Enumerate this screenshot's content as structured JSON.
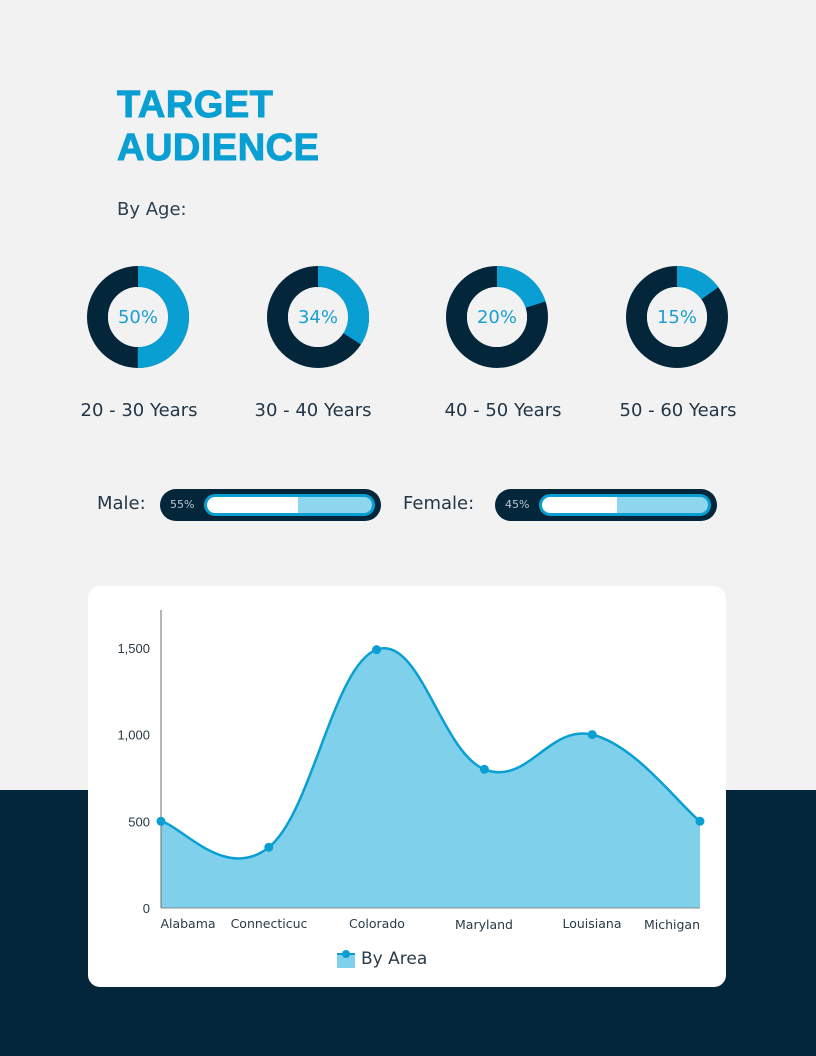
{
  "header": {
    "title_line1": "TARGET",
    "title_line2": "AUDIENCE",
    "subtitle": "By Age:"
  },
  "colors": {
    "accent": "#0a9fd3",
    "dark": "#03263b",
    "area_fill": "#7fd0ea",
    "background": "#f2f2f2",
    "light_bar": "#8fd6ef"
  },
  "age_groups": [
    {
      "label": "20 - 30 Years",
      "percent": 50,
      "percent_label": "50%"
    },
    {
      "label": "30 - 40 Years",
      "percent": 34,
      "percent_label": "34%"
    },
    {
      "label": "40 - 50 Years",
      "percent": 20,
      "percent_label": "20%"
    },
    {
      "label": "50 - 60 Years",
      "percent": 15,
      "percent_label": "15%"
    }
  ],
  "gender": {
    "male": {
      "label": "Male:",
      "percent": 55,
      "percent_label": "55%"
    },
    "female": {
      "label": "Female:",
      "percent": 45,
      "percent_label": "45%"
    }
  },
  "chart_data": [
    {
      "type": "pie",
      "title": "By Age",
      "categories": [
        "20 - 30 Years",
        "30 - 40 Years",
        "40 - 50 Years",
        "50 - 60 Years"
      ],
      "values": [
        50,
        34,
        20,
        15
      ],
      "note": "Each rendered as a separate donut gauge (percent of whole)"
    },
    {
      "type": "bar",
      "title": "By Gender",
      "categories": [
        "Male",
        "Female"
      ],
      "values": [
        55,
        45
      ],
      "note": "Rendered as horizontal progress pills"
    },
    {
      "type": "area",
      "title": "",
      "categories": [
        "Alabama",
        "Connecticuc",
        "Colorado",
        "Maryland",
        "Louisiana",
        "Michigan"
      ],
      "series": [
        {
          "name": "By Area",
          "values": [
            500,
            350,
            1490,
            800,
            1000,
            500
          ]
        }
      ],
      "xlabel": "",
      "ylabel": "",
      "ylim": [
        0,
        1700
      ],
      "yticks": [
        0,
        500,
        1000,
        1500
      ],
      "ytick_labels": [
        "0",
        "500",
        "1,000",
        "1,500"
      ],
      "grid": false,
      "legend_position": "bottom",
      "smooth": true
    }
  ],
  "area_chart": {
    "yticks": [
      "0",
      "500",
      "1,000",
      "1,500"
    ],
    "xticks": [
      "Alabama",
      "Connecticuc",
      "Colorado",
      "Maryland",
      "Louisiana",
      "Michigan"
    ],
    "legend_label": "By Area"
  }
}
